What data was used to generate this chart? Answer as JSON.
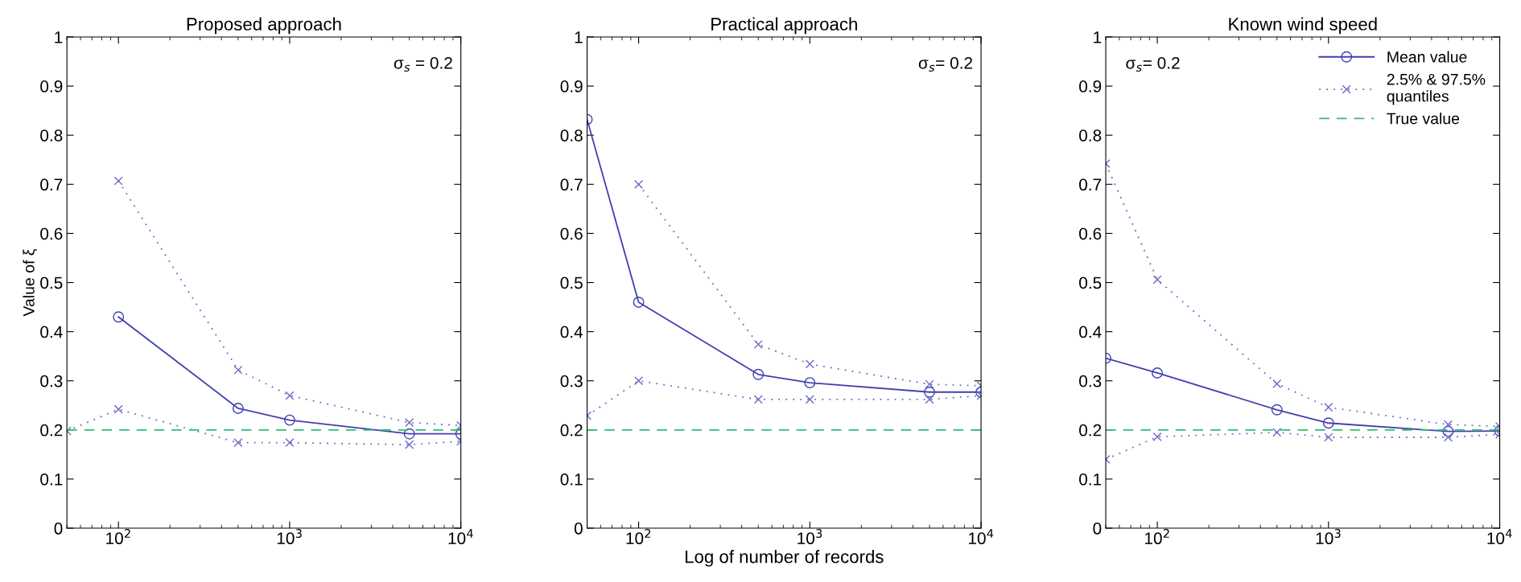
{
  "chart_data": [
    {
      "type": "line",
      "title": "Proposed approach",
      "ylabel": "Value of ξ",
      "x": [
        50,
        100,
        500,
        1000,
        5000,
        10000
      ],
      "log": "x",
      "xlim": [
        50,
        10000
      ],
      "xticks": [
        {
          "value": 100,
          "label": "10$^{2}$"
        },
        {
          "value": 1000,
          "label": "10$^{3}$"
        },
        {
          "value": 10000,
          "label": "10$^{4}$"
        }
      ],
      "ylim": [
        0,
        1
      ],
      "yticks": [
        0,
        0.1,
        0.2,
        0.3,
        0.4,
        0.5,
        0.6,
        0.7,
        0.8,
        0.9,
        1
      ],
      "grid": false,
      "legend": false,
      "annotations": [
        "σ$_{s}$ = 0.2"
      ],
      "series": [
        {
          "color": "#4040b0",
          "marker": "circle",
          "line_style": "solid",
          "values": [
            null,
            0.43,
            0.244,
            0.22,
            0.192,
            0.192
          ]
        },
        {
          "color": "#6a6ac8",
          "marker": "cross",
          "line_style": "dotted",
          "values": [
            null,
            0.707,
            0.322,
            0.27,
            0.215,
            0.209
          ]
        },
        {
          "color": "#6a6ac8",
          "marker": "cross",
          "line_style": "dotted",
          "values": [
            0.198,
            0.242,
            0.174,
            0.174,
            0.17,
            0.177
          ]
        }
      ],
      "ref_lines": [
        {
          "axis": "y",
          "value": 0.2,
          "color": "#33bb77",
          "line_style": "dashed"
        }
      ]
    },
    {
      "type": "line",
      "title": "Practical approach",
      "xlabel": "Log of number of records",
      "x": [
        50,
        100,
        500,
        1000,
        5000,
        10000
      ],
      "log": "x",
      "xlim": [
        50,
        10000
      ],
      "xticks": [
        {
          "value": 100,
          "label": "10$^{2}$"
        },
        {
          "value": 1000,
          "label": "10$^{3}$"
        },
        {
          "value": 10000,
          "label": "10$^{4}$"
        }
      ],
      "ylim": [
        0,
        1
      ],
      "yticks": [
        0,
        0.1,
        0.2,
        0.3,
        0.4,
        0.5,
        0.6,
        0.7,
        0.8,
        0.9,
        1
      ],
      "grid": false,
      "legend": false,
      "annotations": [
        "σ$_{s}$= 0.2"
      ],
      "series": [
        {
          "color": "#4040b0",
          "marker": "circle",
          "line_style": "solid",
          "values": [
            0.832,
            0.46,
            0.313,
            0.296,
            0.277,
            0.277
          ]
        },
        {
          "color": "#6a6ac8",
          "marker": "cross",
          "line_style": "dotted",
          "values": [
            null,
            0.7,
            0.374,
            0.334,
            0.293,
            0.29
          ]
        },
        {
          "color": "#6a6ac8",
          "marker": "cross",
          "line_style": "dotted",
          "values": [
            0.229,
            0.3,
            0.262,
            0.262,
            0.262,
            0.27
          ]
        }
      ],
      "ref_lines": [
        {
          "axis": "y",
          "value": 0.2,
          "color": "#33bb77",
          "line_style": "dashed"
        }
      ]
    },
    {
      "type": "line",
      "title": "Known wind speed",
      "x": [
        50,
        100,
        500,
        1000,
        5000,
        10000
      ],
      "log": "x",
      "xlim": [
        50,
        10000
      ],
      "xticks": [
        {
          "value": 100,
          "label": "10$^{2}$"
        },
        {
          "value": 1000,
          "label": "10$^{3}$"
        },
        {
          "value": 10000,
          "label": "10$^{4}$"
        }
      ],
      "ylim": [
        0,
        1
      ],
      "yticks": [
        0,
        0.1,
        0.2,
        0.3,
        0.4,
        0.5,
        0.6,
        0.7,
        0.8,
        0.9,
        1
      ],
      "grid": false,
      "legend": "top right",
      "annotations": [
        "σ$_{s}$= 0.2"
      ],
      "series": [
        {
          "name": "Mean value",
          "color": "#4040b0",
          "marker": "circle",
          "line_style": "solid",
          "values": [
            0.346,
            0.316,
            0.241,
            0.214,
            0.197,
            0.198
          ]
        },
        {
          "name": "2.5% & 97.5%\nquantiles",
          "color": "#6a6ac8",
          "marker": "cross",
          "line_style": "dotted",
          "values": [
            0.742,
            0.506,
            0.294,
            0.246,
            0.211,
            0.207
          ]
        },
        {
          "color": "#6a6ac8",
          "marker": "cross",
          "line_style": "dotted",
          "values": [
            0.14,
            0.186,
            0.195,
            0.185,
            0.185,
            0.191
          ]
        }
      ],
      "ref_lines": [
        {
          "axis": "y",
          "value": 0.2,
          "label": "True value",
          "color": "#33bb77",
          "line_style": "dashed"
        }
      ]
    }
  ]
}
